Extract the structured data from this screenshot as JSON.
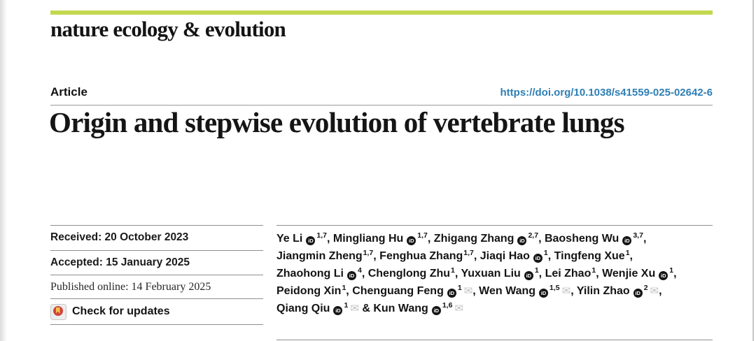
{
  "journal": {
    "name": "nature ecology & evolution"
  },
  "article": {
    "kind_label": "Article",
    "doi": "https://doi.org/10.1038/s41559-025-02642-6",
    "title": "Origin and stepwise evolution of vertebrate lungs"
  },
  "dates": {
    "received": "Received: 20 October 2023",
    "accepted": "Accepted: 15 January 2025",
    "published": "Published online: 14 February 2025"
  },
  "check_for_updates": {
    "label": "Check for updates"
  },
  "icons": {
    "orcid": "iD",
    "mail": "✉"
  },
  "colors": {
    "accent_lime": "#c3d84f",
    "link_blue": "#2e7fb5"
  },
  "authors": {
    "lines": [
      [
        {
          "t": "Ye Li"
        },
        {
          "orcid": true
        },
        {
          "sup": "1,7"
        },
        {
          "t": ", Mingliang Hu"
        },
        {
          "orcid": true
        },
        {
          "sup": "1,7"
        },
        {
          "t": ", Zhigang Zhang"
        },
        {
          "orcid": true
        },
        {
          "sup": "2,7"
        },
        {
          "t": ", Baosheng Wu"
        },
        {
          "orcid": true
        },
        {
          "sup": "3,7"
        },
        {
          "t": ","
        }
      ],
      [
        {
          "t": "Jiangmin Zheng"
        },
        {
          "sup": "1,7"
        },
        {
          "t": ", Fenghua Zhang"
        },
        {
          "sup": "1,7"
        },
        {
          "t": ", Jiaqi Hao"
        },
        {
          "orcid": true
        },
        {
          "sup": "1"
        },
        {
          "t": ", Tingfeng Xue"
        },
        {
          "sup": "1"
        },
        {
          "t": ","
        }
      ],
      [
        {
          "t": "Zhaohong Li"
        },
        {
          "orcid": true
        },
        {
          "sup": "4"
        },
        {
          "t": ", Chenglong Zhu"
        },
        {
          "sup": "1"
        },
        {
          "t": ", Yuxuan Liu"
        },
        {
          "orcid": true
        },
        {
          "sup": "1"
        },
        {
          "t": ", Lei Zhao"
        },
        {
          "sup": "1"
        },
        {
          "t": ", Wenjie Xu"
        },
        {
          "orcid": true
        },
        {
          "sup": "1"
        },
        {
          "t": ","
        }
      ],
      [
        {
          "t": "Peidong Xin"
        },
        {
          "sup": "1"
        },
        {
          "t": ", Chenguang Feng"
        },
        {
          "orcid": true
        },
        {
          "sup": "1"
        },
        {
          "mail": true
        },
        {
          "t": ", Wen Wang"
        },
        {
          "orcid": true
        },
        {
          "sup": "1,5"
        },
        {
          "mail": true
        },
        {
          "t": ", Yilin Zhao"
        },
        {
          "orcid": true
        },
        {
          "sup": "2"
        },
        {
          "mail": true
        },
        {
          "t": ","
        }
      ],
      [
        {
          "t": "Qiang Qiu"
        },
        {
          "orcid": true
        },
        {
          "sup": "1"
        },
        {
          "mail": true
        },
        {
          "t": " & Kun Wang"
        },
        {
          "orcid": true
        },
        {
          "sup": "1,6"
        },
        {
          "mail": true
        }
      ]
    ]
  }
}
